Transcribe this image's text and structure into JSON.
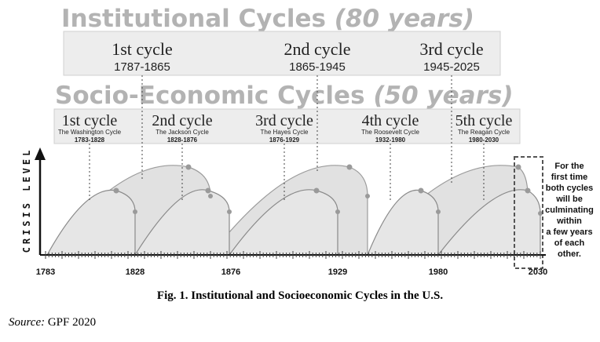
{
  "titles": {
    "institutional_main": "Institutional Cycles",
    "institutional_period": "(80 years)",
    "socio_main": "Socio-Economic Cycles",
    "socio_period": "(50 years)"
  },
  "institutional_cycles": [
    {
      "name": "1st cycle",
      "years": "1787-1865"
    },
    {
      "name": "2nd cycle",
      "years": "1865-1945"
    },
    {
      "name": "3rd cycle",
      "years": "1945-2025"
    }
  ],
  "socio_cycles": [
    {
      "name": "1st cycle",
      "subtitle": "The Washington Cycle",
      "years": "1783-1828"
    },
    {
      "name": "2nd cycle",
      "subtitle": "The Jackson Cycle",
      "years": "1828-1876"
    },
    {
      "name": "3rd cycle",
      "subtitle": "The Hayes Cycle",
      "years": "1876-1929"
    },
    {
      "name": "4th cycle",
      "subtitle": "The Roosevelt Cycle",
      "years": "1932-1980"
    },
    {
      "name": "5th cycle",
      "subtitle": "The Reagan Cycle",
      "years": "1980-2030"
    }
  ],
  "axis": {
    "y_label": "CRISIS LEVEL",
    "ticks": [
      "1783",
      "1828",
      "1876",
      "1929",
      "1980",
      "2030"
    ]
  },
  "note_lines": [
    "For the",
    "first time",
    "both cycles",
    "will be",
    "culminating",
    "within",
    "a few years",
    "of each",
    "other."
  ],
  "caption": "Fig. 1. Institutional and Socioeconomic Cycles in the U.S.",
  "source": {
    "label": "Source:",
    "text": "GPF 2020"
  },
  "colors": {
    "title_gray": "#b3b3b3",
    "box_fill": "#ededed",
    "curve_fill": "#dcdcdc",
    "line": "#888888"
  }
}
